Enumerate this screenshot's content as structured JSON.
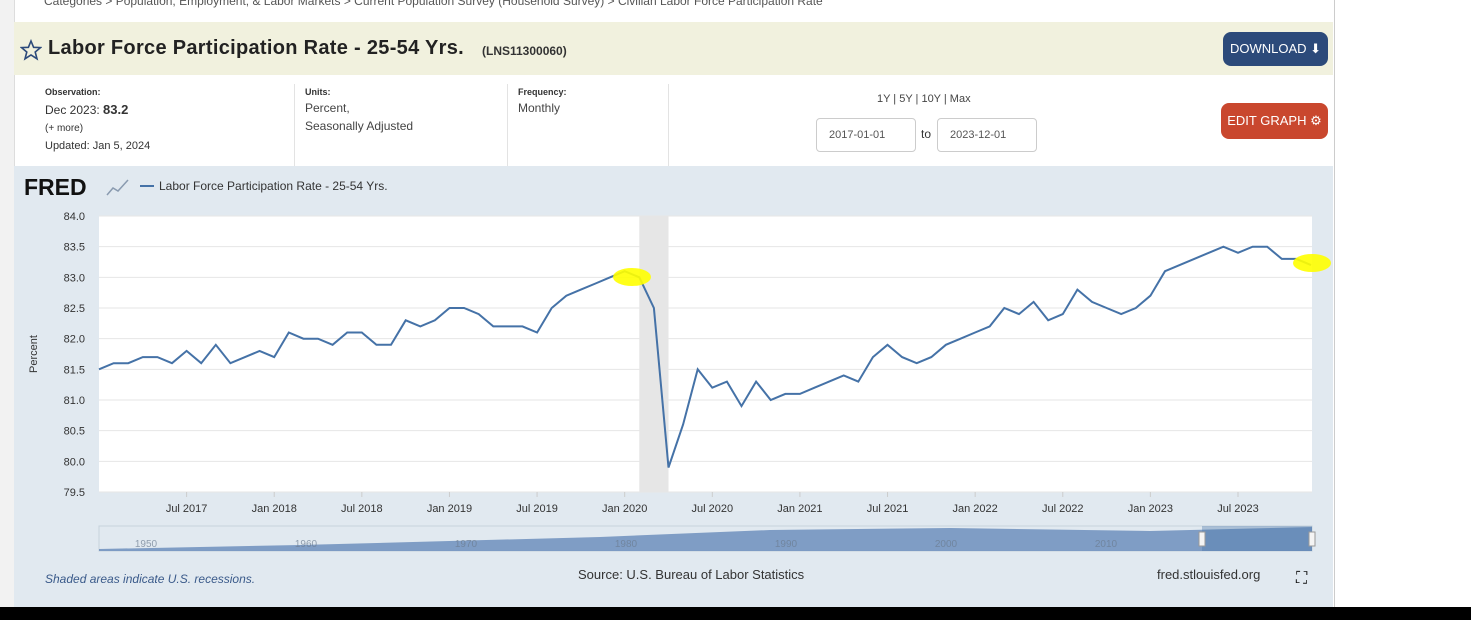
{
  "breadcrumb": "Categories > Population, Employment, & Labor Markets > Current Population Survey (Household Survey) > Civilian Labor Force Participation Rate",
  "header": {
    "title": "Labor Force Participation Rate - 25-54 Yrs.",
    "series_id": "(LNS11300060)",
    "download": "DOWNLOAD"
  },
  "meta": {
    "observation_label": "Observation:",
    "observation_date": "Dec 2023:",
    "observation_value": "83.2",
    "more": "(+ more)",
    "updated": "Updated: Jan 5, 2024",
    "units_label": "Units:",
    "units": [
      "Percent,",
      "Seasonally Adjusted"
    ],
    "frequency_label": "Frequency:",
    "frequency": "Monthly"
  },
  "controls": {
    "ranges": "1Y | 5Y | 10Y | Max",
    "start": "2017-01-01",
    "to": "to",
    "end": "2023-12-01",
    "edit": "EDIT GRAPH"
  },
  "chart_data": {
    "type": "line",
    "logo": "FRED",
    "ylabel": "Percent",
    "x": [
      "Jan 2017",
      "Feb 2017",
      "Mar 2017",
      "Apr 2017",
      "May 2017",
      "Jun 2017",
      "Jul 2017",
      "Aug 2017",
      "Sep 2017",
      "Oct 2017",
      "Nov 2017",
      "Dec 2017",
      "Jan 2018",
      "Feb 2018",
      "Mar 2018",
      "Apr 2018",
      "May 2018",
      "Jun 2018",
      "Jul 2018",
      "Aug 2018",
      "Sep 2018",
      "Oct 2018",
      "Nov 2018",
      "Dec 2018",
      "Jan 2019",
      "Feb 2019",
      "Mar 2019",
      "Apr 2019",
      "May 2019",
      "Jun 2019",
      "Jul 2019",
      "Aug 2019",
      "Sep 2019",
      "Oct 2019",
      "Nov 2019",
      "Dec 2019",
      "Jan 2020",
      "Feb 2020",
      "Mar 2020",
      "Apr 2020",
      "May 2020",
      "Jun 2020",
      "Jul 2020",
      "Aug 2020",
      "Sep 2020",
      "Oct 2020",
      "Nov 2020",
      "Dec 2020",
      "Jan 2021",
      "Feb 2021",
      "Mar 2021",
      "Apr 2021",
      "May 2021",
      "Jun 2021",
      "Jul 2021",
      "Aug 2021",
      "Sep 2021",
      "Oct 2021",
      "Nov 2021",
      "Dec 2021",
      "Jan 2022",
      "Feb 2022",
      "Mar 2022",
      "Apr 2022",
      "May 2022",
      "Jun 2022",
      "Jul 2022",
      "Aug 2022",
      "Sep 2022",
      "Oct 2022",
      "Nov 2022",
      "Dec 2022",
      "Jan 2023",
      "Feb 2023",
      "Mar 2023",
      "Apr 2023",
      "May 2023",
      "Jun 2023",
      "Jul 2023",
      "Aug 2023",
      "Sep 2023",
      "Oct 2023",
      "Nov 2023",
      "Dec 2023"
    ],
    "series": [
      {
        "name": "Labor Force Participation Rate - 25-54 Yrs.",
        "color": "#4572a7",
        "values": [
          81.5,
          81.6,
          81.6,
          81.7,
          81.7,
          81.6,
          81.8,
          81.6,
          81.9,
          81.6,
          81.7,
          81.8,
          81.7,
          82.1,
          82.0,
          82.0,
          81.9,
          82.1,
          82.1,
          81.9,
          81.9,
          82.3,
          82.2,
          82.3,
          82.5,
          82.5,
          82.4,
          82.2,
          82.2,
          82.2,
          82.1,
          82.5,
          82.7,
          82.8,
          82.9,
          83.0,
          83.1,
          83.0,
          82.5,
          79.9,
          80.6,
          81.5,
          81.2,
          81.3,
          80.9,
          81.3,
          81.0,
          81.1,
          81.1,
          81.2,
          81.3,
          81.4,
          81.3,
          81.7,
          81.9,
          81.7,
          81.6,
          81.7,
          81.9,
          82.0,
          82.1,
          82.2,
          82.5,
          82.4,
          82.6,
          82.3,
          82.4,
          82.8,
          82.6,
          82.5,
          82.4,
          82.5,
          82.7,
          83.1,
          83.2,
          83.3,
          83.4,
          83.5,
          83.4,
          83.5,
          83.5,
          83.3,
          83.3,
          83.2
        ]
      }
    ],
    "xticks": [
      "Jul 2017",
      "Jan 2018",
      "Jul 2018",
      "Jan 2019",
      "Jul 2019",
      "Jan 2020",
      "Jul 2020",
      "Jan 2021",
      "Jul 2021",
      "Jan 2022",
      "Jul 2022",
      "Jan 2023",
      "Jul 2023"
    ],
    "ylim": [
      79.5,
      84
    ],
    "yticks": [
      79.5,
      {
        "value": 80,
        "label": "80.0"
      },
      80.5,
      {
        "value": 81,
        "label": "81.0"
      },
      81.5,
      {
        "value": 82,
        "label": "82.0"
      },
      82.5,
      {
        "value": 83,
        "label": "83.0"
      },
      83.5,
      {
        "value": 84,
        "label": "84.0"
      }
    ],
    "grid": true,
    "recession": {
      "start": "Feb 2020",
      "end": "Apr 2020"
    }
  },
  "navigator": [
    "1950",
    "1960",
    "1970",
    "1980",
    "1990",
    "2000",
    "2010"
  ],
  "footer": {
    "note": "Shaded areas indicate U.S. recessions.",
    "source": "Source: U.S. Bureau of Labor Statistics",
    "site": "fred.stlouisfed.org"
  }
}
